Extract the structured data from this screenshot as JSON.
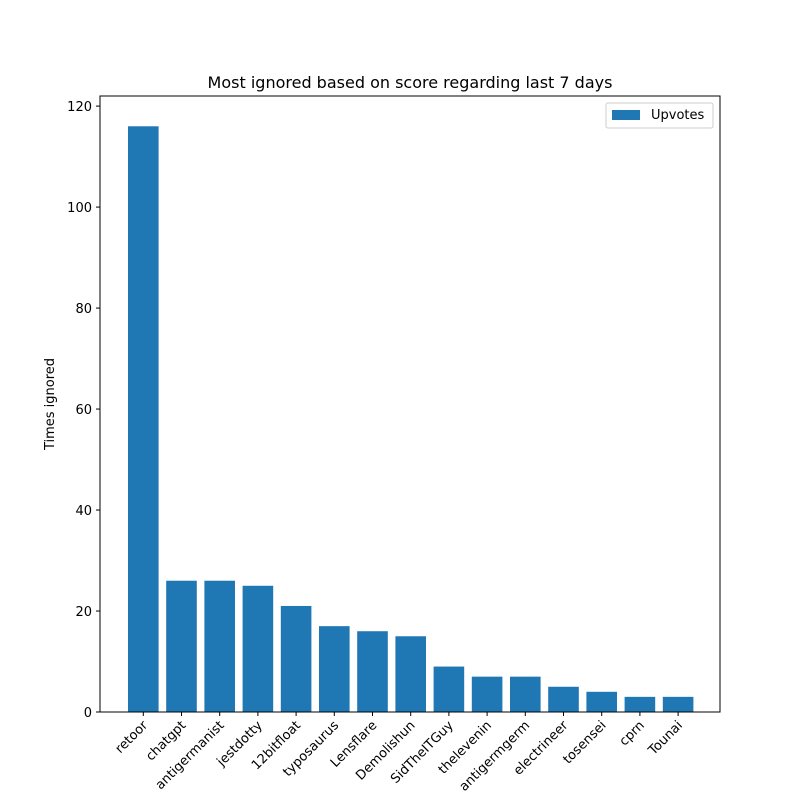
{
  "chart_data": {
    "type": "bar",
    "title": "Most ignored based on score regarding last 7 days",
    "xlabel": "",
    "ylabel": "Times ignored",
    "categories": [
      "retoor",
      "chatgpt",
      "antigermanist",
      "jestdotty",
      "12bitfloat",
      "typosaurus",
      "Lensflare",
      "Demolishun",
      "SidTheITGuy",
      "thelevenin",
      "antigermgerm",
      "electrineer",
      "tosensei",
      "cprn",
      "Tounai"
    ],
    "series": [
      {
        "name": "Upvotes",
        "values": [
          116,
          26,
          26,
          25,
          21,
          17,
          16,
          15,
          9,
          7,
          7,
          5,
          4,
          3,
          3
        ],
        "color": "#1f77b4"
      }
    ],
    "ylim": [
      0,
      122
    ],
    "yticks": [
      0,
      20,
      40,
      60,
      80,
      100,
      120
    ],
    "grid": false,
    "legend_position": "top-right"
  }
}
